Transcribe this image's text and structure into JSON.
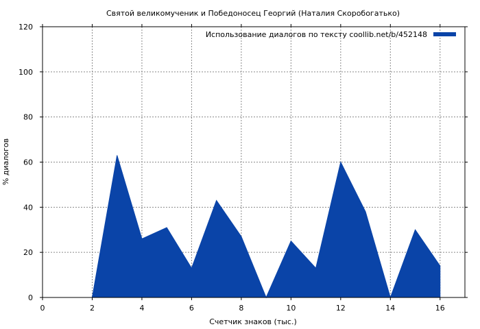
{
  "chart_data": {
    "type": "area",
    "title": "Святой великомученик и Победоносец Георгий (Наталия Скоробогатько)",
    "xlabel": "Счетчик знаков (тыс.)",
    "ylabel": "% диалогов",
    "xlim": [
      0,
      17
    ],
    "ylim": [
      0,
      120
    ],
    "xticks": [
      0,
      2,
      4,
      6,
      8,
      10,
      12,
      14,
      16
    ],
    "yticks": [
      0,
      20,
      40,
      60,
      80,
      100,
      120
    ],
    "grid": true,
    "legend_position": "top-right",
    "series": [
      {
        "name": "Использование диалогов по тексту  coollib.net/b/452148",
        "color": "#0a44a8",
        "x": [
          2,
          3,
          4,
          5,
          6,
          7,
          8,
          9,
          10,
          11,
          12,
          13,
          14,
          15,
          16
        ],
        "y": [
          0,
          63,
          26,
          31,
          13,
          43,
          27,
          0,
          25,
          13,
          60,
          38,
          0,
          30,
          14
        ]
      }
    ]
  }
}
